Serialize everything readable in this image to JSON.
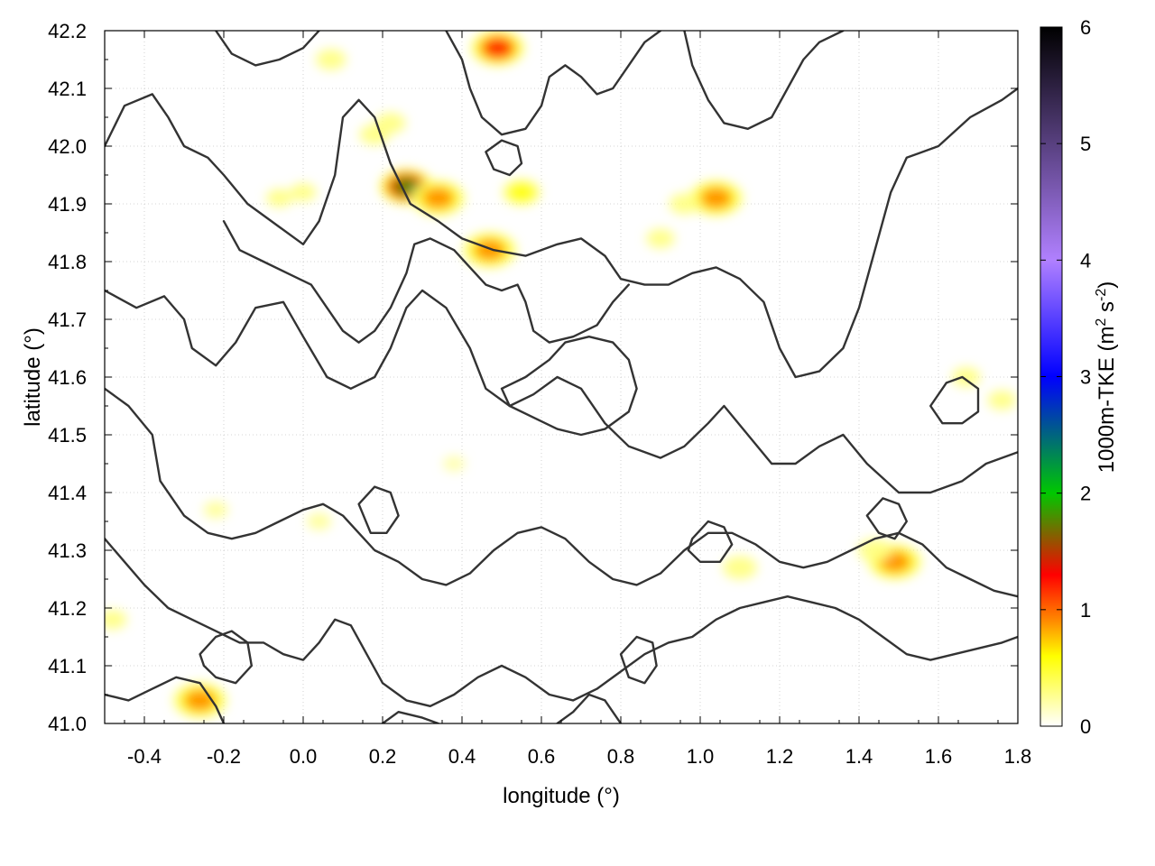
{
  "chart_data": {
    "type": "heatmap",
    "xlabel": "longitude (°)",
    "ylabel": "latitude (°)",
    "xlim": [
      -0.5,
      1.8
    ],
    "ylim": [
      41.0,
      42.2
    ],
    "xticks": [
      -0.4,
      -0.2,
      0.0,
      0.2,
      0.4,
      0.6,
      0.8,
      1.0,
      1.2,
      1.4,
      1.6,
      1.8
    ],
    "xtick_labels": [
      "-0.4",
      "-0.2",
      "0.0",
      "0.2",
      "0.4",
      "0.6",
      "0.8",
      "1.0",
      "1.2",
      "1.4",
      "1.6",
      "1.8"
    ],
    "yticks": [
      41.0,
      41.1,
      41.2,
      41.3,
      41.4,
      41.5,
      41.6,
      41.7,
      41.8,
      41.9,
      42.0,
      42.1,
      42.2
    ],
    "ytick_labels": [
      "41.0",
      "41.1",
      "41.2",
      "41.3",
      "41.4",
      "41.5",
      "41.6",
      "41.7",
      "41.8",
      "41.9",
      "42.0",
      "42.1",
      "42.2"
    ],
    "grid": true,
    "colorbar": {
      "label_prefix": "1000m-TKE (m",
      "label_sup1": "2",
      "label_mid": " s",
      "label_sup2": "-2",
      "label_suffix": ")",
      "range": [
        0,
        6
      ],
      "ticks": [
        0,
        1,
        2,
        3,
        4,
        5,
        6
      ],
      "tick_labels": [
        "0",
        "1",
        "2",
        "3",
        "4",
        "5",
        "6"
      ],
      "colors": [
        "#ffffff",
        "#ffff00",
        "#ff8c00",
        "#ff0000",
        "#00c800",
        "#0000ff",
        "#b080ff",
        "#000000"
      ],
      "stops": [
        0,
        0.6,
        0.9,
        1.3,
        2.0,
        3.0,
        4.0,
        6.0
      ]
    },
    "hotspots": [
      {
        "lon": 0.26,
        "lat": 41.93,
        "tke": 2.0
      },
      {
        "lon": 0.22,
        "lat": 42.04,
        "tke": 0.4
      },
      {
        "lon": 0.34,
        "lat": 41.91,
        "tke": 1.1
      },
      {
        "lon": 0.18,
        "lat": 42.02,
        "tke": 0.4
      },
      {
        "lon": 0.47,
        "lat": 41.82,
        "tke": 1.0
      },
      {
        "lon": 0.49,
        "lat": 42.17,
        "tke": 1.2
      },
      {
        "lon": 0.55,
        "lat": 41.92,
        "tke": 0.6
      },
      {
        "lon": 0.07,
        "lat": 42.15,
        "tke": 0.4
      },
      {
        "lon": 1.04,
        "lat": 41.91,
        "tke": 1.0
      },
      {
        "lon": 0.96,
        "lat": 41.9,
        "tke": 0.4
      },
      {
        "lon": 1.49,
        "lat": 41.28,
        "tke": 1.0
      },
      {
        "lon": 1.44,
        "lat": 41.3,
        "tke": 0.5
      },
      {
        "lon": -0.26,
        "lat": 41.04,
        "tke": 1.0
      },
      {
        "lon": 1.1,
        "lat": 41.27,
        "tke": 0.5
      },
      {
        "lon": 1.67,
        "lat": 41.6,
        "tke": 0.35
      },
      {
        "lon": 1.76,
        "lat": 41.56,
        "tke": 0.35
      },
      {
        "lon": -0.06,
        "lat": 41.91,
        "tke": 0.3
      },
      {
        "lon": 0.0,
        "lat": 41.92,
        "tke": 0.3
      },
      {
        "lon": -0.48,
        "lat": 41.18,
        "tke": 0.35
      },
      {
        "lon": 0.04,
        "lat": 41.35,
        "tke": 0.25
      },
      {
        "lon": 0.9,
        "lat": 41.84,
        "tke": 0.35
      },
      {
        "lon": 0.38,
        "lat": 41.45,
        "tke": 0.2
      },
      {
        "lon": -0.22,
        "lat": 41.37,
        "tke": 0.25
      }
    ],
    "contours": [
      [
        [
          -0.5,
          42.0
        ],
        [
          -0.45,
          42.07
        ],
        [
          -0.38,
          42.09
        ],
        [
          -0.34,
          42.05
        ],
        [
          -0.3,
          42.0
        ],
        [
          -0.24,
          41.98
        ],
        [
          -0.2,
          41.95
        ],
        [
          -0.14,
          41.9
        ],
        [
          -0.06,
          41.86
        ],
        [
          0.0,
          41.83
        ],
        [
          0.04,
          41.87
        ],
        [
          0.08,
          41.95
        ],
        [
          0.1,
          42.05
        ],
        [
          0.14,
          42.08
        ],
        [
          0.18,
          42.05
        ],
        [
          0.22,
          41.97
        ],
        [
          0.27,
          41.9
        ],
        [
          0.34,
          41.87
        ],
        [
          0.4,
          41.84
        ],
        [
          0.48,
          41.82
        ],
        [
          0.56,
          41.81
        ],
        [
          0.64,
          41.83
        ],
        [
          0.7,
          41.84
        ],
        [
          0.76,
          41.81
        ],
        [
          0.8,
          41.77
        ],
        [
          0.86,
          41.76
        ],
        [
          0.92,
          41.76
        ],
        [
          0.98,
          41.78
        ],
        [
          1.04,
          41.79
        ],
        [
          1.1,
          41.77
        ],
        [
          1.16,
          41.73
        ],
        [
          1.2,
          41.65
        ],
        [
          1.24,
          41.6
        ],
        [
          1.3,
          41.61
        ],
        [
          1.36,
          41.65
        ],
        [
          1.4,
          41.72
        ],
        [
          1.44,
          41.82
        ],
        [
          1.48,
          41.92
        ],
        [
          1.52,
          41.98
        ],
        [
          1.6,
          42.0
        ],
        [
          1.68,
          42.05
        ],
        [
          1.76,
          42.08
        ],
        [
          1.8,
          42.1
        ]
      ],
      [
        [
          -0.5,
          41.75
        ],
        [
          -0.42,
          41.72
        ],
        [
          -0.35,
          41.74
        ],
        [
          -0.3,
          41.7
        ],
        [
          -0.28,
          41.65
        ],
        [
          -0.22,
          41.62
        ],
        [
          -0.17,
          41.66
        ],
        [
          -0.12,
          41.72
        ],
        [
          -0.05,
          41.73
        ],
        [
          0.0,
          41.67
        ],
        [
          0.06,
          41.6
        ],
        [
          0.12,
          41.58
        ],
        [
          0.18,
          41.6
        ],
        [
          0.22,
          41.65
        ],
        [
          0.26,
          41.72
        ],
        [
          0.3,
          41.75
        ],
        [
          0.36,
          41.72
        ],
        [
          0.42,
          41.65
        ],
        [
          0.46,
          41.58
        ],
        [
          0.52,
          41.55
        ],
        [
          0.58,
          41.57
        ],
        [
          0.64,
          41.6
        ],
        [
          0.7,
          41.58
        ],
        [
          0.76,
          41.52
        ],
        [
          0.82,
          41.48
        ],
        [
          0.9,
          41.46
        ],
        [
          0.96,
          41.48
        ],
        [
          1.02,
          41.52
        ],
        [
          1.06,
          41.55
        ],
        [
          1.12,
          41.5
        ],
        [
          1.18,
          41.45
        ],
        [
          1.24,
          41.45
        ],
        [
          1.3,
          41.48
        ],
        [
          1.36,
          41.5
        ],
        [
          1.42,
          41.45
        ],
        [
          1.5,
          41.4
        ],
        [
          1.58,
          41.4
        ],
        [
          1.66,
          41.42
        ],
        [
          1.72,
          41.45
        ],
        [
          1.8,
          41.47
        ]
      ],
      [
        [
          -0.5,
          41.58
        ],
        [
          -0.44,
          41.55
        ],
        [
          -0.38,
          41.5
        ],
        [
          -0.36,
          41.42
        ],
        [
          -0.3,
          41.36
        ],
        [
          -0.24,
          41.33
        ],
        [
          -0.18,
          41.32
        ],
        [
          -0.12,
          41.33
        ],
        [
          -0.06,
          41.35
        ],
        [
          0.0,
          41.37
        ],
        [
          0.05,
          41.38
        ],
        [
          0.1,
          41.36
        ],
        [
          0.14,
          41.33
        ],
        [
          0.18,
          41.3
        ],
        [
          0.24,
          41.28
        ],
        [
          0.3,
          41.25
        ],
        [
          0.36,
          41.24
        ],
        [
          0.42,
          41.26
        ],
        [
          0.48,
          41.3
        ],
        [
          0.54,
          41.33
        ],
        [
          0.6,
          41.34
        ],
        [
          0.66,
          41.32
        ],
        [
          0.72,
          41.28
        ],
        [
          0.78,
          41.25
        ],
        [
          0.84,
          41.24
        ],
        [
          0.9,
          41.26
        ],
        [
          0.96,
          41.3
        ],
        [
          1.02,
          41.33
        ],
        [
          1.08,
          41.33
        ],
        [
          1.14,
          41.31
        ],
        [
          1.2,
          41.28
        ],
        [
          1.26,
          41.27
        ],
        [
          1.32,
          41.28
        ],
        [
          1.38,
          41.3
        ],
        [
          1.44,
          41.32
        ],
        [
          1.5,
          41.33
        ],
        [
          1.56,
          41.31
        ],
        [
          1.62,
          41.27
        ],
        [
          1.68,
          41.25
        ],
        [
          1.74,
          41.23
        ],
        [
          1.8,
          41.22
        ]
      ],
      [
        [
          -0.5,
          41.32
        ],
        [
          -0.45,
          41.28
        ],
        [
          -0.4,
          41.24
        ],
        [
          -0.34,
          41.2
        ],
        [
          -0.28,
          41.18
        ],
        [
          -0.22,
          41.16
        ],
        [
          -0.16,
          41.14
        ],
        [
          -0.1,
          41.14
        ],
        [
          -0.05,
          41.12
        ],
        [
          0.0,
          41.11
        ],
        [
          0.04,
          41.14
        ],
        [
          0.08,
          41.18
        ],
        [
          0.12,
          41.17
        ],
        [
          0.16,
          41.12
        ],
        [
          0.2,
          41.07
        ],
        [
          0.26,
          41.04
        ],
        [
          0.32,
          41.03
        ],
        [
          0.38,
          41.05
        ],
        [
          0.44,
          41.08
        ],
        [
          0.5,
          41.1
        ],
        [
          0.56,
          41.08
        ],
        [
          0.62,
          41.05
        ],
        [
          0.68,
          41.04
        ],
        [
          0.74,
          41.06
        ],
        [
          0.8,
          41.09
        ],
        [
          0.86,
          41.12
        ],
        [
          0.92,
          41.14
        ],
        [
          0.98,
          41.15
        ],
        [
          1.04,
          41.18
        ],
        [
          1.1,
          41.2
        ],
        [
          1.16,
          41.21
        ],
        [
          1.22,
          41.22
        ],
        [
          1.28,
          41.21
        ],
        [
          1.34,
          41.2
        ],
        [
          1.4,
          41.18
        ],
        [
          1.46,
          41.15
        ],
        [
          1.52,
          41.12
        ],
        [
          1.58,
          41.11
        ],
        [
          1.64,
          41.12
        ],
        [
          1.7,
          41.13
        ],
        [
          1.76,
          41.14
        ],
        [
          1.8,
          41.15
        ]
      ],
      [
        [
          -0.5,
          41.05
        ],
        [
          -0.44,
          41.04
        ],
        [
          -0.38,
          41.06
        ],
        [
          -0.32,
          41.08
        ],
        [
          -0.26,
          41.07
        ],
        [
          -0.22,
          41.03
        ],
        [
          -0.2,
          41.0
        ]
      ],
      [
        [
          0.2,
          41.0
        ],
        [
          0.24,
          41.02
        ],
        [
          0.3,
          41.01
        ],
        [
          0.34,
          41.0
        ]
      ],
      [
        [
          0.64,
          41.0
        ],
        [
          0.68,
          41.02
        ],
        [
          0.72,
          41.05
        ],
        [
          0.76,
          41.04
        ],
        [
          0.8,
          41.0
        ]
      ],
      [
        [
          -0.2,
          41.87
        ],
        [
          -0.16,
          41.82
        ],
        [
          -0.1,
          41.8
        ],
        [
          -0.04,
          41.78
        ],
        [
          0.02,
          41.76
        ],
        [
          0.06,
          41.72
        ],
        [
          0.1,
          41.68
        ],
        [
          0.14,
          41.66
        ],
        [
          0.18,
          41.68
        ],
        [
          0.22,
          41.72
        ],
        [
          0.26,
          41.78
        ],
        [
          0.28,
          41.83
        ],
        [
          0.32,
          41.84
        ],
        [
          0.38,
          41.82
        ],
        [
          0.42,
          41.79
        ],
        [
          0.46,
          41.76
        ],
        [
          0.5,
          41.75
        ],
        [
          0.54,
          41.76
        ],
        [
          0.56,
          41.73
        ],
        [
          0.58,
          41.68
        ],
        [
          0.62,
          41.66
        ],
        [
          0.68,
          41.67
        ],
        [
          0.74,
          41.69
        ],
        [
          0.78,
          41.73
        ],
        [
          0.82,
          41.76
        ]
      ],
      [
        [
          0.36,
          42.2
        ],
        [
          0.4,
          42.15
        ],
        [
          0.42,
          42.1
        ],
        [
          0.45,
          42.05
        ],
        [
          0.5,
          42.02
        ],
        [
          0.56,
          42.03
        ],
        [
          0.6,
          42.07
        ],
        [
          0.62,
          42.12
        ],
        [
          0.66,
          42.14
        ],
        [
          0.7,
          42.12
        ],
        [
          0.74,
          42.09
        ],
        [
          0.78,
          42.1
        ],
        [
          0.82,
          42.14
        ],
        [
          0.86,
          42.18
        ],
        [
          0.9,
          42.2
        ]
      ],
      [
        [
          0.96,
          42.2
        ],
        [
          0.98,
          42.14
        ],
        [
          1.02,
          42.08
        ],
        [
          1.06,
          42.04
        ],
        [
          1.12,
          42.03
        ],
        [
          1.18,
          42.05
        ],
        [
          1.22,
          42.1
        ],
        [
          1.26,
          42.15
        ],
        [
          1.3,
          42.18
        ],
        [
          1.36,
          42.2
        ]
      ],
      [
        [
          -0.22,
          42.2
        ],
        [
          -0.18,
          42.16
        ],
        [
          -0.12,
          42.14
        ],
        [
          -0.06,
          42.15
        ],
        [
          0.0,
          42.17
        ],
        [
          0.04,
          42.2
        ]
      ]
    ],
    "closed_contours": [
      [
        [
          0.5,
          41.58
        ],
        [
          0.56,
          41.6
        ],
        [
          0.62,
          41.63
        ],
        [
          0.66,
          41.66
        ],
        [
          0.72,
          41.67
        ],
        [
          0.78,
          41.66
        ],
        [
          0.82,
          41.63
        ],
        [
          0.84,
          41.58
        ],
        [
          0.82,
          41.54
        ],
        [
          0.76,
          41.51
        ],
        [
          0.7,
          41.5
        ],
        [
          0.64,
          41.51
        ],
        [
          0.58,
          41.53
        ],
        [
          0.52,
          41.55
        ]
      ],
      [
        [
          0.98,
          41.32
        ],
        [
          1.02,
          41.35
        ],
        [
          1.06,
          41.34
        ],
        [
          1.08,
          41.31
        ],
        [
          1.05,
          41.28
        ],
        [
          1.0,
          41.28
        ],
        [
          0.97,
          41.3
        ]
      ],
      [
        [
          -0.26,
          41.12
        ],
        [
          -0.22,
          41.15
        ],
        [
          -0.18,
          41.16
        ],
        [
          -0.14,
          41.14
        ],
        [
          -0.13,
          41.1
        ],
        [
          -0.17,
          41.07
        ],
        [
          -0.22,
          41.08
        ],
        [
          -0.25,
          41.1
        ]
      ],
      [
        [
          0.8,
          41.12
        ],
        [
          0.84,
          41.15
        ],
        [
          0.88,
          41.14
        ],
        [
          0.89,
          41.1
        ],
        [
          0.86,
          41.07
        ],
        [
          0.82,
          41.08
        ]
      ],
      [
        [
          1.58,
          41.55
        ],
        [
          1.62,
          41.59
        ],
        [
          1.66,
          41.6
        ],
        [
          1.7,
          41.58
        ],
        [
          1.7,
          41.54
        ],
        [
          1.66,
          41.52
        ],
        [
          1.61,
          41.52
        ]
      ],
      [
        [
          0.14,
          41.38
        ],
        [
          0.18,
          41.41
        ],
        [
          0.22,
          41.4
        ],
        [
          0.24,
          41.36
        ],
        [
          0.21,
          41.33
        ],
        [
          0.17,
          41.33
        ]
      ],
      [
        [
          0.46,
          41.99
        ],
        [
          0.5,
          42.01
        ],
        [
          0.54,
          42.0
        ],
        [
          0.55,
          41.97
        ],
        [
          0.52,
          41.95
        ],
        [
          0.48,
          41.96
        ]
      ],
      [
        [
          1.42,
          41.36
        ],
        [
          1.46,
          41.39
        ],
        [
          1.5,
          41.38
        ],
        [
          1.52,
          41.35
        ],
        [
          1.49,
          41.32
        ],
        [
          1.45,
          41.33
        ]
      ]
    ]
  }
}
